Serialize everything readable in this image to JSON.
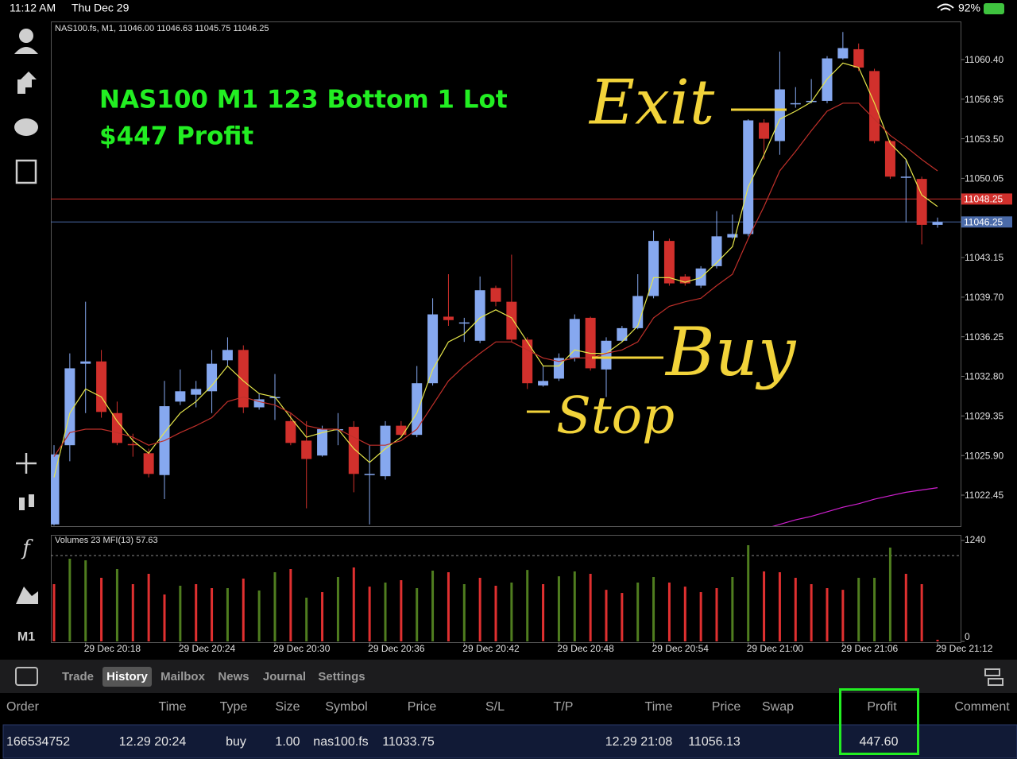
{
  "status_bar": {
    "time": "11:12 AM",
    "date": "Thu Dec 29",
    "battery": "92%"
  },
  "sidebar": {
    "timeframe": "M1"
  },
  "chart_data": {
    "type": "candlestick",
    "header": "NAS100.fs, M1, 11046.00 11046.63 11045.75 11046.25",
    "title": "NAS100 M1 123 Bottom 1 Lot",
    "subtitle": "$447 Profit",
    "annotations": [
      "Exit",
      "Buy",
      "Stop"
    ],
    "categories": [
      null,
      null,
      "29 Dec 20:18",
      null,
      null,
      null,
      null,
      null,
      "29 Dec 20:24",
      null,
      null,
      null,
      null,
      null,
      "29 Dec 20:30",
      null,
      null,
      null,
      null,
      null,
      "29 Dec 20:36",
      null,
      null,
      null,
      null,
      null,
      "29 Dec 20:42",
      null,
      null,
      null,
      null,
      null,
      "29 Dec 20:48",
      null,
      null,
      null,
      null,
      null,
      "29 Dec 20:54",
      null,
      null,
      null,
      null,
      null,
      "29 Dec 21:00",
      null,
      null,
      null,
      null,
      null,
      "29 Dec 21:06",
      null,
      null,
      null,
      null,
      null,
      "29 Dec 21:12"
    ],
    "open": [
      11019.9,
      11026.8,
      11033.9,
      11034.1,
      11029.6,
      11026.9,
      11026.1,
      11024.2,
      11030.6,
      11031.2,
      11031.5,
      11034.2,
      11035.1,
      11030.1,
      11031.0,
      11028.9,
      11027.2,
      11025.9,
      11028.2,
      11028.4,
      11024.3,
      11024.1,
      11028.5,
      11027.7,
      11032.2,
      11038.0,
      11037.5,
      11035.9,
      11040.5,
      11039.3,
      11036.0,
      11032.0,
      11032.6,
      11034.4,
      11037.9,
      11033.4,
      11035.9,
      11037.0,
      11039.8,
      11044.6,
      11041.5,
      11040.7,
      11042.4,
      11044.9,
      11045.2,
      11054.9,
      11053.3,
      11056.6,
      11056.8,
      11056.8,
      11060.5,
      11061.3,
      11059.4,
      11053.3,
      11050.2,
      11050.0,
      11046.0
    ],
    "high": [
      11026.8,
      11034.8,
      11039.3,
      11035.1,
      11030.6,
      11027.8,
      11026.5,
      11032.4,
      11033.4,
      11032.4,
      11035.1,
      11036.2,
      11035.5,
      11031.3,
      11033.0,
      11029.6,
      11028.9,
      11028.5,
      11029.6,
      11028.9,
      11026.8,
      11028.9,
      11028.9,
      11033.7,
      11039.6,
      11041.7,
      11037.9,
      11041.5,
      11040.7,
      11043.4,
      11036.2,
      11033.7,
      11034.8,
      11038.2,
      11038.0,
      11036.2,
      11037.2,
      11041.7,
      11045.5,
      11044.8,
      11041.7,
      11042.4,
      11047.2,
      11046.9,
      11055.2,
      11055.2,
      11061.1,
      11058.0,
      11058.7,
      11060.7,
      11062.8,
      11061.8,
      11059.6,
      11053.4,
      11051.7,
      11050.2,
      11046.63
    ],
    "low": [
      11019.8,
      11025.4,
      11029.6,
      11029.2,
      11026.8,
      11025.8,
      11024.0,
      11022.1,
      11030.3,
      11030.1,
      11029.6,
      11033.7,
      11029.6,
      11029.9,
      11029.0,
      11026.8,
      11021.3,
      11025.8,
      11026.8,
      11022.7,
      11019.9,
      11023.8,
      11027.5,
      11027.5,
      11032.0,
      11037.2,
      11035.8,
      11035.7,
      11038.9,
      11035.8,
      11031.7,
      11031.9,
      11032.4,
      11034.1,
      11033.3,
      11031.0,
      11035.8,
      11036.9,
      11039.6,
      11040.7,
      11040.7,
      11040.5,
      11042.2,
      11044.8,
      11045.0,
      11051.7,
      11052.1,
      11056.2,
      11056.6,
      11056.6,
      11060.4,
      11059.4,
      11053.1,
      11050.0,
      11046.2,
      11044.3,
      11045.75
    ],
    "close": [
      11026.0,
      11033.5,
      11034.1,
      11029.7,
      11027.0,
      11026.8,
      11024.3,
      11030.2,
      11031.5,
      11031.7,
      11033.9,
      11035.1,
      11030.1,
      11030.8,
      11031.0,
      11027.0,
      11025.6,
      11028.2,
      11028.2,
      11024.3,
      11024.3,
      11028.5,
      11027.7,
      11032.2,
      11038.2,
      11037.7,
      11037.5,
      11040.3,
      11039.3,
      11036.0,
      11032.2,
      11032.4,
      11034.4,
      11037.8,
      11033.5,
      11035.9,
      11037.0,
      11039.8,
      11044.6,
      11040.9,
      11040.9,
      11042.2,
      11045.0,
      11045.2,
      11055.1,
      11053.5,
      11057.8,
      11056.6,
      11056.8,
      11060.5,
      11061.4,
      11059.7,
      11053.3,
      11050.2,
      11050.2,
      11046.0,
      11046.25
    ],
    "up_color": "#86a8ef",
    "down_color": "#d1302c",
    "lines": [
      {
        "color": "#e6e64a",
        "values": [
          11024.0,
          11029.6,
          11031.7,
          11031.0,
          11028.9,
          11027.2,
          11026.1,
          11027.9,
          11029.6,
          11030.6,
          11032.0,
          11033.7,
          11032.4,
          11031.3,
          11031.0,
          11029.2,
          11027.5,
          11027.9,
          11028.2,
          11026.5,
          11025.3,
          11026.5,
          11027.5,
          11029.6,
          11033.4,
          11035.8,
          11036.5,
          11037.9,
          11038.6,
          11037.9,
          11035.8,
          11033.7,
          11033.7,
          11035.1,
          11034.8,
          11034.8,
          11035.8,
          11037.2,
          11041.4,
          11041.4,
          11041.0,
          11041.4,
          11042.7,
          11044.1,
          11049.3,
          11052.1,
          11055.2,
          11055.9,
          11056.7,
          11058.7,
          11060.1,
          11059.7,
          11056.6,
          11053.1,
          11051.7,
          11048.6,
          11047.6
        ]
      },
      {
        "color": "#c0302a",
        "values": [
          11025.8,
          11027.9,
          11028.2,
          11028.2,
          11027.9,
          11027.5,
          11026.8,
          11027.2,
          11027.9,
          11028.5,
          11029.2,
          11030.6,
          11031.0,
          11030.6,
          11030.3,
          11029.6,
          11028.5,
          11028.2,
          11028.2,
          11027.5,
          11026.8,
          11026.8,
          11027.2,
          11028.2,
          11030.3,
          11032.4,
          11033.7,
          11034.8,
          11035.8,
          11035.8,
          11035.1,
          11034.4,
          11034.1,
          11034.4,
          11034.4,
          11034.8,
          11035.1,
          11035.8,
          11037.9,
          11038.9,
          11039.3,
          11039.6,
          11040.7,
          11041.7,
          11044.8,
          11047.6,
          11050.7,
          11052.4,
          11054.2,
          11055.9,
          11056.6,
          11056.6,
          11055.2,
          11053.8,
          11052.8,
          11051.7,
          11050.7
        ]
      },
      {
        "color": "#d020d0",
        "values": [
          null,
          null,
          null,
          null,
          null,
          null,
          null,
          null,
          null,
          null,
          null,
          null,
          null,
          null,
          null,
          null,
          null,
          null,
          null,
          null,
          null,
          null,
          null,
          null,
          null,
          null,
          null,
          null,
          null,
          null,
          null,
          null,
          null,
          null,
          null,
          null,
          null,
          null,
          null,
          null,
          null,
          null,
          null,
          null,
          11019.1,
          11019.5,
          11019.9,
          11020.3,
          11020.6,
          11021.0,
          11021.4,
          11021.7,
          11022.1,
          11022.4,
          11022.7,
          11022.9,
          11023.1
        ]
      }
    ],
    "price_lines": [
      {
        "value": 11048.25,
        "color": "#d1302c"
      },
      {
        "value": 11046.25,
        "color": "#4a6aa8"
      }
    ],
    "ylim": [
      11019.75,
      11063.65
    ],
    "yticks": [
      {
        "value": 11060.4,
        "label": "11060.40"
      },
      11056.95,
      {
        "value": 11053.5,
        "label": "11053.50"
      },
      11050.05,
      11043.15,
      {
        "value": 11039.7,
        "label": "11039.70"
      },
      11036.25,
      {
        "value": 11032.8,
        "label": "11032.80"
      },
      11029.35,
      {
        "value": 11025.9,
        "label": "11025.90"
      },
      11022.45
    ],
    "volume": {
      "label": "Volumes 23 MFI(13) 57.63",
      "values": [
        703,
        1015,
        996,
        781,
        888,
        703,
        830,
        576,
        683,
        703,
        654,
        654,
        771,
        625,
        849,
        888,
        537,
        605,
        791,
        908,
        673,
        722,
        752,
        654,
        869,
        849,
        703,
        781,
        683,
        722,
        878,
        703,
        800,
        859,
        830,
        634,
        595,
        722,
        791,
        722,
        673,
        605,
        654,
        791,
        1181,
        859,
        849,
        781,
        703,
        654,
        634,
        781,
        781,
        1152,
        830,
        703,
        20
      ],
      "colors": [
        "#e03030",
        "#4f7d1f",
        "#4f7d1f",
        "#e03030",
        "#4f7d1f",
        "#e03030",
        "#e03030",
        "#e03030",
        "#4f7d1f",
        "#e03030",
        "#e03030",
        "#4f7d1f",
        "#e03030",
        "#4f7d1f",
        "#4f7d1f",
        "#e03030",
        "#4f7d1f",
        "#e03030",
        "#4f7d1f",
        "#e03030",
        "#e03030",
        "#4f7d1f",
        "#e03030",
        "#4f7d1f",
        "#4f7d1f",
        "#e03030",
        "#4f7d1f",
        "#e03030",
        "#e03030",
        "#4f7d1f",
        "#4f7d1f",
        "#e03030",
        "#4f7d1f",
        "#4f7d1f",
        "#e03030",
        "#e03030",
        "#e03030",
        "#4f7d1f",
        "#4f7d1f",
        "#e03030",
        "#e03030",
        "#e03030",
        "#e03030",
        "#4f7d1f",
        "#4f7d1f",
        "#e03030",
        "#e03030",
        "#e03030",
        "#e03030",
        "#e03030",
        "#e03030",
        "#4f7d1f",
        "#4f7d1f",
        "#4f7d1f",
        "#e03030",
        "#e03030",
        "#e03030"
      ],
      "ylim": [
        0,
        1240
      ],
      "yticks": [
        0,
        1240
      ]
    }
  },
  "tabs": [
    "Trade",
    "History",
    "Mailbox",
    "News",
    "Journal",
    "Settings"
  ],
  "active_tab": 1,
  "table": {
    "headers": [
      "Order",
      "Time",
      "Type",
      "Size",
      "Symbol",
      "Price",
      "S/L",
      "T/P",
      "Time",
      "Price",
      "Swap",
      "Profit",
      "Comment"
    ],
    "rows": [
      [
        "166534752",
        "12.29 20:24",
        "buy",
        "1.00",
        "nas100.fs",
        "11033.75",
        null,
        null,
        "12.29 21:08",
        "11056.13",
        null,
        "447.60",
        null
      ]
    ]
  }
}
